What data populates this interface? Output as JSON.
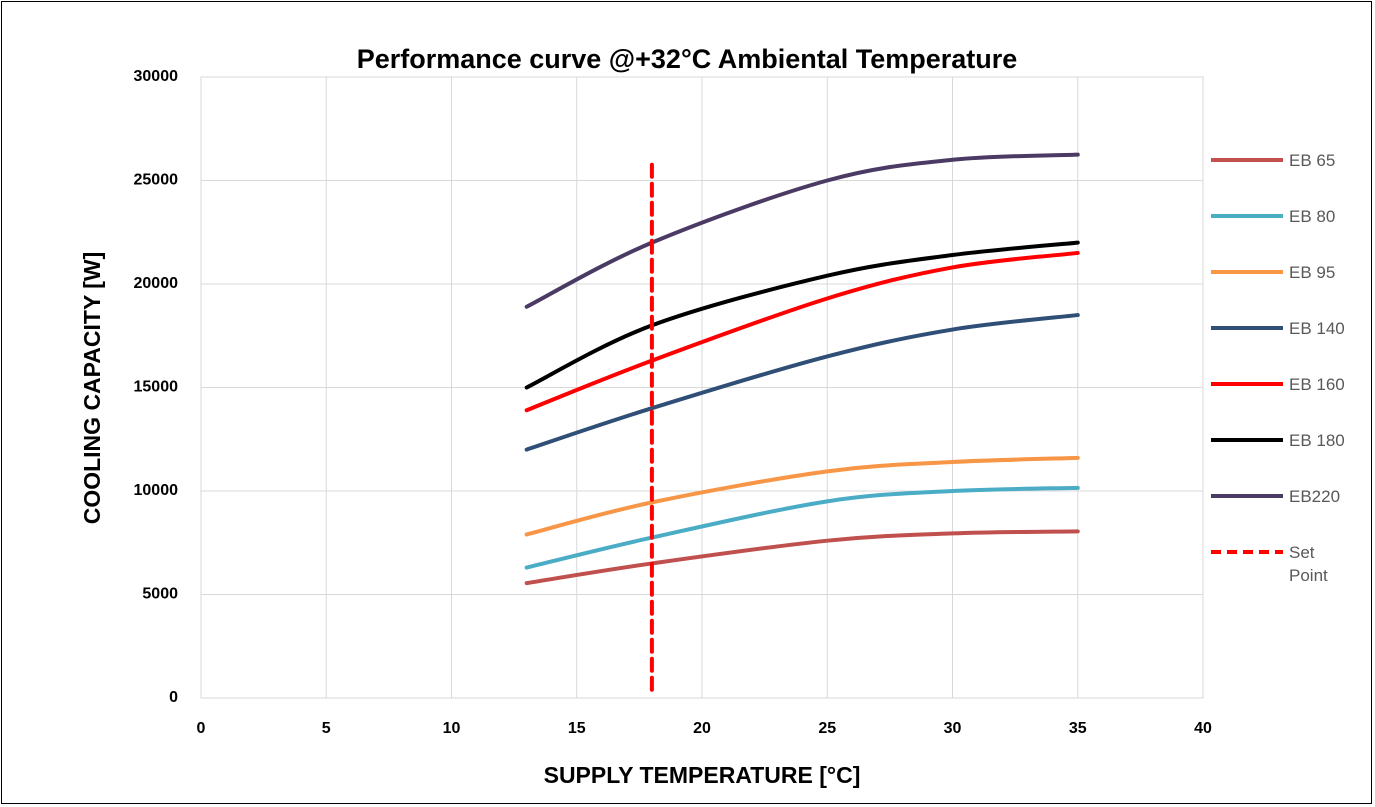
{
  "chart_data": {
    "type": "line",
    "title": "Performance curve @+32°C Ambiental Temperature",
    "xlabel": "SUPPLY TEMPERATURE [°C]",
    "ylabel": "COOLING CAPACITY [W]",
    "xlim": [
      0,
      40
    ],
    "ylim": [
      0,
      30000
    ],
    "xticks": [
      0,
      5,
      10,
      15,
      20,
      25,
      30,
      35,
      40
    ],
    "yticks": [
      0,
      5000,
      10000,
      15000,
      20000,
      25000,
      30000
    ],
    "grid": true,
    "legend_position": "right",
    "series": [
      {
        "name": "EB 65",
        "color": "#c0504d",
        "style": "solid",
        "x": [
          13,
          18,
          25,
          30,
          35
        ],
        "y": [
          5550,
          6500,
          7600,
          7950,
          8050
        ]
      },
      {
        "name": "EB 80",
        "color": "#4bacc6",
        "style": "solid",
        "x": [
          13,
          18,
          25,
          30,
          35
        ],
        "y": [
          6300,
          7750,
          9500,
          10000,
          10150
        ]
      },
      {
        "name": "EB 95",
        "color": "#f79646",
        "style": "solid",
        "x": [
          13,
          18,
          25,
          30,
          35
        ],
        "y": [
          7900,
          9450,
          10950,
          11400,
          11600
        ]
      },
      {
        "name": "EB 140",
        "color": "#2f4f77",
        "style": "solid",
        "x": [
          13,
          18,
          25,
          30,
          35
        ],
        "y": [
          12000,
          14000,
          16500,
          17800,
          18500
        ]
      },
      {
        "name": "EB 160",
        "color": "#ff0000",
        "style": "solid",
        "x": [
          13,
          18,
          25,
          30,
          35
        ],
        "y": [
          13900,
          16300,
          19300,
          20800,
          21500
        ]
      },
      {
        "name": "EB 180",
        "color": "#000000",
        "style": "solid",
        "x": [
          13,
          18,
          25,
          30,
          35
        ],
        "y": [
          15000,
          18000,
          20400,
          21400,
          22000
        ]
      },
      {
        "name": "EB220",
        "color": "#4b3a63",
        "style": "solid",
        "x": [
          13,
          18,
          25,
          30,
          35
        ],
        "y": [
          18900,
          22000,
          25000,
          26000,
          26250
        ]
      },
      {
        "name": "Set Point",
        "color": "#ff0000",
        "style": "dashed",
        "x": [
          18,
          18
        ],
        "y": [
          400,
          25800
        ]
      }
    ]
  }
}
